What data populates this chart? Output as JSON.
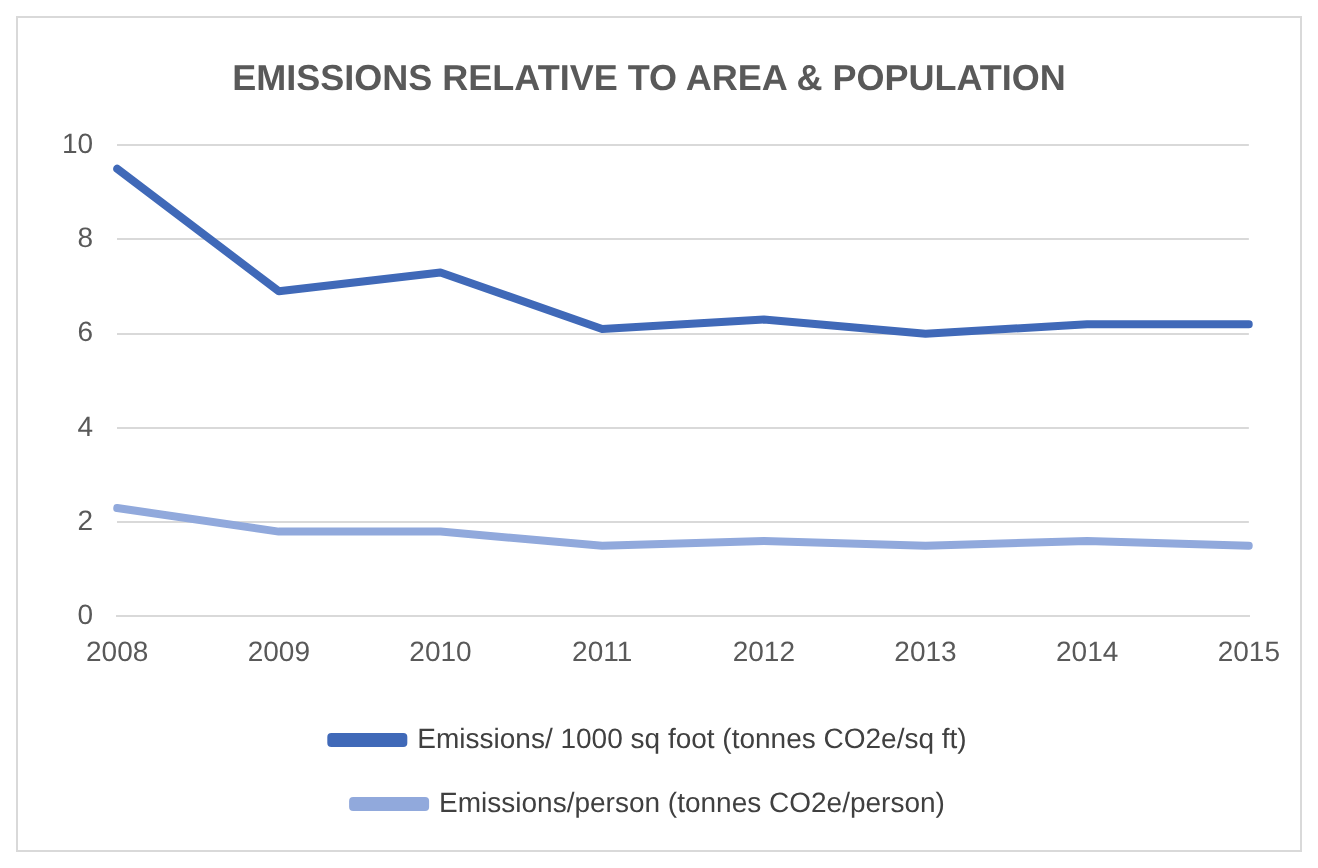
{
  "chart_data": {
    "type": "line",
    "title": "EMISSIONS RELATIVE TO AREA & POPULATION",
    "categories": [
      "2008",
      "2009",
      "2010",
      "2011",
      "2012",
      "2013",
      "2014",
      "2015"
    ],
    "series": [
      {
        "name": "Emissions/ 1000 sq foot (tonnes CO2e/sq ft)",
        "color": "#4069b8",
        "values": [
          9.5,
          6.9,
          7.3,
          6.1,
          6.3,
          6.0,
          6.2,
          6.2
        ]
      },
      {
        "name": "Emissions/person (tonnes CO2e/person)",
        "color": "#91a9dc",
        "values": [
          2.3,
          1.8,
          1.8,
          1.5,
          1.6,
          1.5,
          1.6,
          1.5
        ]
      }
    ],
    "ylim": [
      0,
      10
    ],
    "yticks": [
      0,
      2,
      4,
      6,
      8,
      10
    ],
    "grid": "y",
    "legend": "bottom",
    "marker": "none",
    "line_style": "solid"
  }
}
